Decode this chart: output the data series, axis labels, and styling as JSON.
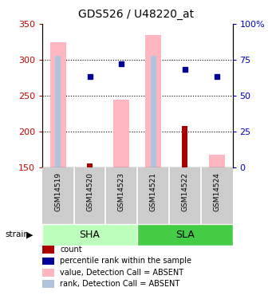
{
  "title": "GDS526 / U48220_at",
  "samples": [
    "GSM14519",
    "GSM14520",
    "GSM14523",
    "GSM14521",
    "GSM14522",
    "GSM14524"
  ],
  "groups": [
    {
      "name": "SHA",
      "color_light": "#AAFFAA",
      "color_dark": "#55CC55",
      "indices": [
        0,
        1,
        2
      ]
    },
    {
      "name": "SLA",
      "color_light": "#55DD55",
      "color_dark": "#22AA22",
      "indices": [
        3,
        4,
        5
      ]
    }
  ],
  "ylim": [
    150,
    350
  ],
  "bars_absent_value": [
    325,
    null,
    245,
    335,
    null,
    168
  ],
  "bars_absent_rank_pct": [
    78,
    null,
    null,
    78,
    null,
    null
  ],
  "dots_percentile": [
    null,
    277,
    294,
    null,
    287,
    277
  ],
  "dots_count_value": [
    null,
    156,
    null,
    null,
    208,
    null
  ],
  "absent_value_color": "#FFB6C1",
  "absent_rank_color": "#B0C4DE",
  "count_color": "#AA0000",
  "percentile_color": "#000099",
  "sha_color": "#BBFFBB",
  "sla_color": "#44CC44",
  "sample_label_color": "#CCCCCC",
  "legend_items": [
    {
      "color": "#AA0000",
      "label": "count"
    },
    {
      "color": "#000099",
      "label": "percentile rank within the sample"
    },
    {
      "color": "#FFB6C1",
      "label": "value, Detection Call = ABSENT"
    },
    {
      "color": "#B0C4DE",
      "label": "rank, Detection Call = ABSENT"
    }
  ]
}
